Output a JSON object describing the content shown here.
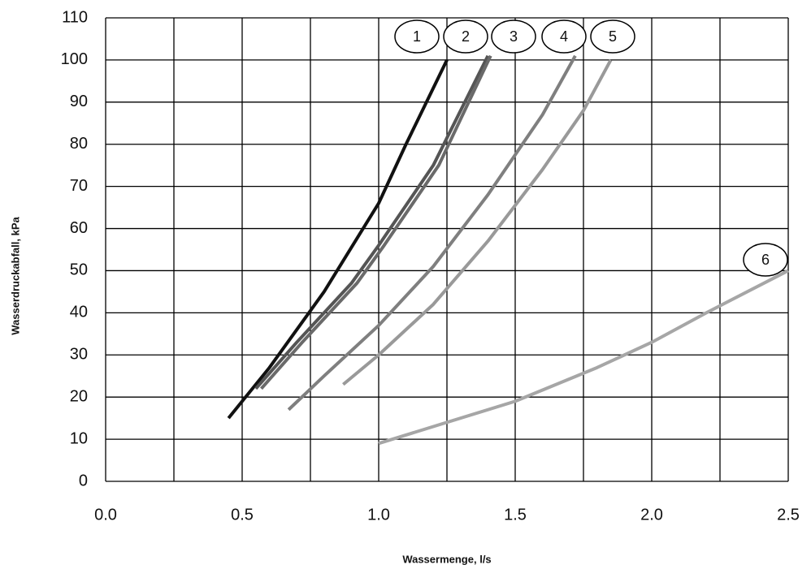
{
  "chart_data": {
    "type": "line",
    "x_label": "Wassermenge, l/s",
    "y_label": "Wasserdruckabfall, kPa",
    "xlim": [
      0,
      2.5
    ],
    "ylim": [
      0,
      110
    ],
    "xticks": [
      {
        "value": 0,
        "label": "0.0"
      },
      0.5,
      {
        "value": 1,
        "label": "1.0"
      },
      1.5,
      {
        "value": 2,
        "label": "2.0"
      },
      2.5
    ],
    "xminorticks": [
      0.25,
      0.75,
      1.25,
      1.75,
      2.25
    ],
    "yticks": [
      0,
      10,
      20,
      30,
      40,
      50,
      60,
      70,
      80,
      90,
      100,
      110
    ],
    "grid": true,
    "series": [
      {
        "name": "1",
        "color": "#111111",
        "x": [
          0.45,
          0.6,
          0.8,
          1.0,
          1.1,
          1.25
        ],
        "values": [
          15,
          27,
          45,
          66,
          80,
          100
        ]
      },
      {
        "name": "2",
        "color": "#555555",
        "x": [
          0.55,
          0.7,
          0.9,
          1.0,
          1.2,
          1.4
        ],
        "values": [
          22,
          33,
          47,
          56,
          75,
          101
        ]
      },
      {
        "name": "3",
        "color": "#6a6a6a",
        "x": [
          0.57,
          0.72,
          0.92,
          1.02,
          1.22,
          1.41
        ],
        "values": [
          22,
          33,
          47,
          56,
          75,
          101
        ]
      },
      {
        "name": "4",
        "color": "#7f7f7f",
        "x": [
          0.67,
          0.8,
          1.0,
          1.2,
          1.4,
          1.6,
          1.72
        ],
        "values": [
          17,
          25,
          37,
          51,
          68,
          87,
          101
        ]
      },
      {
        "name": "5",
        "color": "#999999",
        "x": [
          0.87,
          1.0,
          1.2,
          1.4,
          1.6,
          1.75,
          1.85
        ],
        "values": [
          23,
          30,
          42,
          57,
          74,
          88,
          100
        ]
      },
      {
        "name": "6",
        "color": "#a6a6a6",
        "x": [
          1.0,
          1.2,
          1.5,
          1.8,
          2.0,
          2.2,
          2.5
        ],
        "values": [
          9,
          13,
          19,
          27,
          33,
          40,
          50
        ]
      }
    ]
  }
}
